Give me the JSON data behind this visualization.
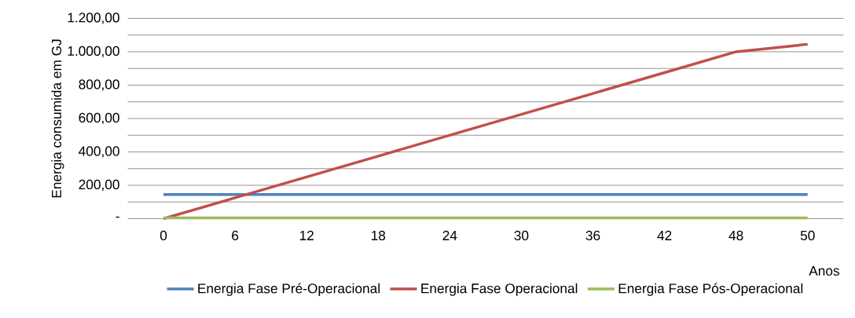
{
  "chart_data": {
    "type": "line",
    "xlabel": "Anos",
    "ylabel": "Energia consumida em GJ",
    "categories": [
      "0",
      "6",
      "12",
      "18",
      "24",
      "30",
      "36",
      "42",
      "48",
      "50"
    ],
    "series": [
      {
        "name": "Energia Fase Pré-Operacional",
        "color": "#4f81bd",
        "values": [
          145,
          145,
          145,
          145,
          145,
          145,
          145,
          145,
          145,
          145
        ]
      },
      {
        "name": "Energia Fase Operacional",
        "color": "#c0504d",
        "values": [
          0,
          125,
          250,
          375,
          500,
          625,
          750,
          875,
          1000,
          1045
        ]
      },
      {
        "name": "Energia Fase Pós-Operacional",
        "color": "#9bbb59",
        "values": [
          5,
          5,
          5,
          5,
          5,
          5,
          5,
          5,
          5,
          5
        ]
      }
    ],
    "ylim": [
      0,
      1200
    ],
    "yticks": [
      {
        "value": 0,
        "label": "-"
      },
      {
        "value": 100,
        "label": null
      },
      {
        "value": 200,
        "label": "200,00"
      },
      {
        "value": 300,
        "label": null
      },
      {
        "value": 400,
        "label": "400,00"
      },
      {
        "value": 500,
        "label": null
      },
      {
        "value": 600,
        "label": "600,00"
      },
      {
        "value": 700,
        "label": null
      },
      {
        "value": 800,
        "label": "800,00"
      },
      {
        "value": 900,
        "label": null
      },
      {
        "value": 1000,
        "label": "1.000,00"
      },
      {
        "value": 1100,
        "label": null
      },
      {
        "value": 1200,
        "label": "1.200,00"
      }
    ],
    "grid": "y",
    "legend": "bottom",
    "marker": "none",
    "line_style": "solid"
  }
}
